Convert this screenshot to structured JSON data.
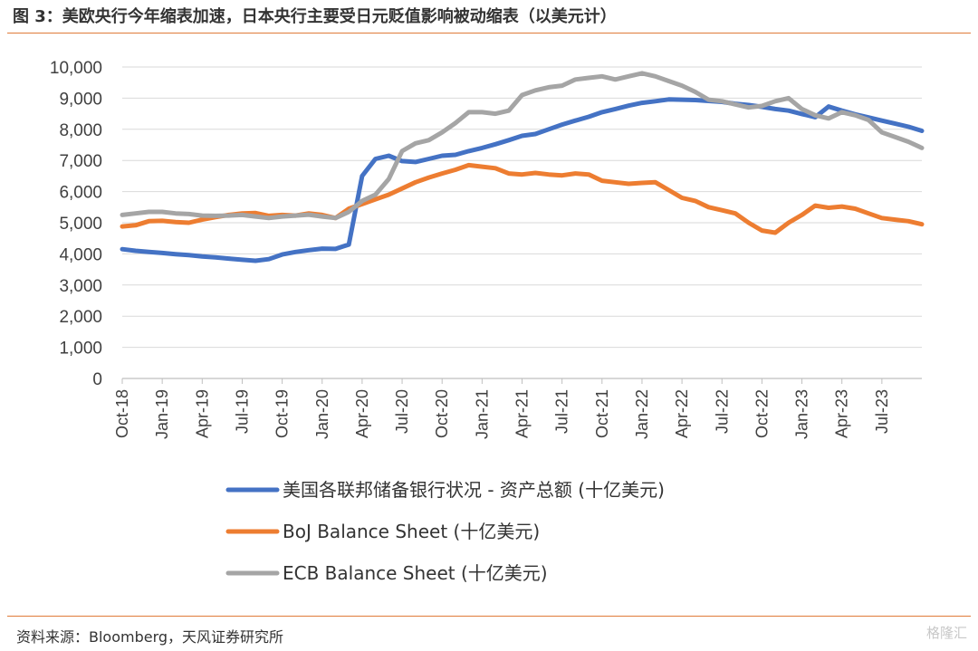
{
  "figure_title": "图 3：美欧央行今年缩表加速，日本央行主要受日元贬值影响被动缩表（以美元计）",
  "source_note": "资料来源：Bloomberg，天风证券研究所",
  "watermark": "格隆汇",
  "colors": {
    "fed": "#4472c4",
    "boj": "#ed7d31",
    "ecb": "#a5a5a5",
    "accent_rule": "#e07b39"
  },
  "chart_data": {
    "type": "line",
    "title": "",
    "xlabel": "",
    "ylabel": "",
    "ylim": [
      0,
      10000
    ],
    "y_ticks": [
      0,
      1000,
      2000,
      3000,
      4000,
      5000,
      6000,
      7000,
      8000,
      9000,
      10000
    ],
    "y_tick_labels": [
      "0",
      "1,000",
      "2,000",
      "3,000",
      "4,000",
      "5,000",
      "6,000",
      "7,000",
      "8,000",
      "9,000",
      "10,000"
    ],
    "x_tick_labels": [
      "Oct-18",
      "Jan-19",
      "Apr-19",
      "Jul-19",
      "Oct-19",
      "Jan-20",
      "Apr-20",
      "Jul-20",
      "Oct-20",
      "Jan-21",
      "Apr-21",
      "Jul-21",
      "Oct-21",
      "Jan-22",
      "Apr-22",
      "Jul-22",
      "Oct-22",
      "Jan-23",
      "Apr-23",
      "Jul-23"
    ],
    "x_start": "2018-10",
    "x_end": "2023-10",
    "grid": "horizontal",
    "legend_position": "bottom",
    "series": [
      {
        "name": "美国各联邦储备银行状况 - 资产总额 (十亿美元)",
        "color": "#4472c4",
        "points": [
          [
            "2018-10",
            4150
          ],
          [
            "2018-11",
            4100
          ],
          [
            "2018-12",
            4060
          ],
          [
            "2019-01",
            4030
          ],
          [
            "2019-02",
            3990
          ],
          [
            "2019-03",
            3960
          ],
          [
            "2019-04",
            3920
          ],
          [
            "2019-05",
            3890
          ],
          [
            "2019-06",
            3850
          ],
          [
            "2019-07",
            3810
          ],
          [
            "2019-08",
            3780
          ],
          [
            "2019-09",
            3830
          ],
          [
            "2019-10",
            3980
          ],
          [
            "2019-11",
            4060
          ],
          [
            "2019-12",
            4120
          ],
          [
            "2020-01",
            4170
          ],
          [
            "2020-02",
            4160
          ],
          [
            "2020-03",
            4300
          ],
          [
            "2020-04",
            6500
          ],
          [
            "2020-05",
            7050
          ],
          [
            "2020-06",
            7150
          ],
          [
            "2020-07",
            6980
          ],
          [
            "2020-08",
            6950
          ],
          [
            "2020-09",
            7050
          ],
          [
            "2020-10",
            7150
          ],
          [
            "2020-11",
            7180
          ],
          [
            "2020-12",
            7300
          ],
          [
            "2021-01",
            7400
          ],
          [
            "2021-02",
            7520
          ],
          [
            "2021-03",
            7650
          ],
          [
            "2021-04",
            7790
          ],
          [
            "2021-05",
            7850
          ],
          [
            "2021-06",
            8000
          ],
          [
            "2021-07",
            8150
          ],
          [
            "2021-08",
            8280
          ],
          [
            "2021-09",
            8400
          ],
          [
            "2021-10",
            8550
          ],
          [
            "2021-11",
            8650
          ],
          [
            "2021-12",
            8760
          ],
          [
            "2022-01",
            8850
          ],
          [
            "2022-02",
            8900
          ],
          [
            "2022-03",
            8960
          ],
          [
            "2022-04",
            8950
          ],
          [
            "2022-05",
            8940
          ],
          [
            "2022-06",
            8910
          ],
          [
            "2022-07",
            8880
          ],
          [
            "2022-08",
            8820
          ],
          [
            "2022-09",
            8780
          ],
          [
            "2022-10",
            8720
          ],
          [
            "2022-11",
            8650
          ],
          [
            "2022-12",
            8600
          ],
          [
            "2023-01",
            8490
          ],
          [
            "2023-02",
            8390
          ],
          [
            "2023-03",
            8730
          ],
          [
            "2023-04",
            8600
          ],
          [
            "2023-05",
            8480
          ],
          [
            "2023-06",
            8380
          ],
          [
            "2023-07",
            8280
          ],
          [
            "2023-08",
            8180
          ],
          [
            "2023-09",
            8080
          ],
          [
            "2023-10",
            7950
          ]
        ]
      },
      {
        "name": "BoJ Balance Sheet (十亿美元)",
        "color": "#ed7d31",
        "points": [
          [
            "2018-10",
            4880
          ],
          [
            "2018-11",
            4920
          ],
          [
            "2018-12",
            5050
          ],
          [
            "2019-01",
            5060
          ],
          [
            "2019-02",
            5020
          ],
          [
            "2019-03",
            5000
          ],
          [
            "2019-04",
            5100
          ],
          [
            "2019-05",
            5180
          ],
          [
            "2019-06",
            5250
          ],
          [
            "2019-07",
            5300
          ],
          [
            "2019-08",
            5310
          ],
          [
            "2019-09",
            5220
          ],
          [
            "2019-10",
            5250
          ],
          [
            "2019-11",
            5230
          ],
          [
            "2019-12",
            5300
          ],
          [
            "2020-01",
            5250
          ],
          [
            "2020-02",
            5150
          ],
          [
            "2020-03",
            5450
          ],
          [
            "2020-04",
            5600
          ],
          [
            "2020-05",
            5750
          ],
          [
            "2020-06",
            5900
          ],
          [
            "2020-07",
            6100
          ],
          [
            "2020-08",
            6300
          ],
          [
            "2020-09",
            6450
          ],
          [
            "2020-10",
            6580
          ],
          [
            "2020-11",
            6700
          ],
          [
            "2020-12",
            6850
          ],
          [
            "2021-01",
            6800
          ],
          [
            "2021-02",
            6750
          ],
          [
            "2021-03",
            6580
          ],
          [
            "2021-04",
            6550
          ],
          [
            "2021-05",
            6600
          ],
          [
            "2021-06",
            6550
          ],
          [
            "2021-07",
            6520
          ],
          [
            "2021-08",
            6580
          ],
          [
            "2021-09",
            6550
          ],
          [
            "2021-10",
            6350
          ],
          [
            "2021-11",
            6300
          ],
          [
            "2021-12",
            6250
          ],
          [
            "2022-01",
            6280
          ],
          [
            "2022-02",
            6300
          ],
          [
            "2022-03",
            6050
          ],
          [
            "2022-04",
            5800
          ],
          [
            "2022-05",
            5700
          ],
          [
            "2022-06",
            5500
          ],
          [
            "2022-07",
            5400
          ],
          [
            "2022-08",
            5300
          ],
          [
            "2022-09",
            5000
          ],
          [
            "2022-10",
            4750
          ],
          [
            "2022-11",
            4680
          ],
          [
            "2022-12",
            5000
          ],
          [
            "2023-01",
            5250
          ],
          [
            "2023-02",
            5550
          ],
          [
            "2023-03",
            5480
          ],
          [
            "2023-04",
            5520
          ],
          [
            "2023-05",
            5450
          ],
          [
            "2023-06",
            5300
          ],
          [
            "2023-07",
            5150
          ],
          [
            "2023-08",
            5100
          ],
          [
            "2023-09",
            5050
          ],
          [
            "2023-10",
            4950
          ]
        ]
      },
      {
        "name": "ECB Balance Sheet (十亿美元)",
        "color": "#a5a5a5",
        "points": [
          [
            "2018-10",
            5250
          ],
          [
            "2018-11",
            5300
          ],
          [
            "2018-12",
            5350
          ],
          [
            "2019-01",
            5350
          ],
          [
            "2019-02",
            5300
          ],
          [
            "2019-03",
            5280
          ],
          [
            "2019-04",
            5230
          ],
          [
            "2019-05",
            5220
          ],
          [
            "2019-06",
            5230
          ],
          [
            "2019-07",
            5250
          ],
          [
            "2019-08",
            5200
          ],
          [
            "2019-09",
            5150
          ],
          [
            "2019-10",
            5200
          ],
          [
            "2019-11",
            5230
          ],
          [
            "2019-12",
            5260
          ],
          [
            "2020-01",
            5200
          ],
          [
            "2020-02",
            5150
          ],
          [
            "2020-03",
            5350
          ],
          [
            "2020-04",
            5700
          ],
          [
            "2020-05",
            5900
          ],
          [
            "2020-06",
            6400
          ],
          [
            "2020-07",
            7300
          ],
          [
            "2020-08",
            7550
          ],
          [
            "2020-09",
            7650
          ],
          [
            "2020-10",
            7900
          ],
          [
            "2020-11",
            8200
          ],
          [
            "2020-12",
            8550
          ],
          [
            "2021-01",
            8550
          ],
          [
            "2021-02",
            8500
          ],
          [
            "2021-03",
            8600
          ],
          [
            "2021-04",
            9100
          ],
          [
            "2021-05",
            9250
          ],
          [
            "2021-06",
            9350
          ],
          [
            "2021-07",
            9400
          ],
          [
            "2021-08",
            9600
          ],
          [
            "2021-09",
            9650
          ],
          [
            "2021-10",
            9700
          ],
          [
            "2021-11",
            9600
          ],
          [
            "2021-12",
            9700
          ],
          [
            "2022-01",
            9800
          ],
          [
            "2022-02",
            9700
          ],
          [
            "2022-03",
            9550
          ],
          [
            "2022-04",
            9400
          ],
          [
            "2022-05",
            9200
          ],
          [
            "2022-06",
            8950
          ],
          [
            "2022-07",
            8900
          ],
          [
            "2022-08",
            8800
          ],
          [
            "2022-09",
            8700
          ],
          [
            "2022-10",
            8750
          ],
          [
            "2022-11",
            8900
          ],
          [
            "2022-12",
            9000
          ],
          [
            "2023-01",
            8650
          ],
          [
            "2023-02",
            8450
          ],
          [
            "2023-03",
            8350
          ],
          [
            "2023-04",
            8550
          ],
          [
            "2023-05",
            8450
          ],
          [
            "2023-06",
            8300
          ],
          [
            "2023-07",
            7900
          ],
          [
            "2023-08",
            7750
          ],
          [
            "2023-09",
            7600
          ],
          [
            "2023-10",
            7400
          ]
        ]
      }
    ]
  }
}
